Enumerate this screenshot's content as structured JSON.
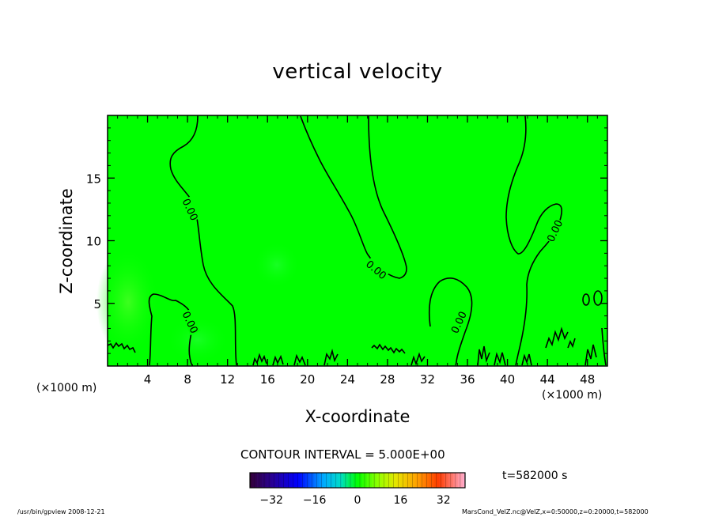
{
  "chart_data": {
    "type": "heatmap",
    "title": "vertical velocity",
    "xlabel": "X-coordinate",
    "ylabel": "Z-coordinate",
    "x_unit_label": "(×1000 m)",
    "xlim": [
      0,
      50
    ],
    "ylim": [
      0,
      20
    ],
    "x_ticks": [
      4,
      8,
      12,
      16,
      20,
      24,
      28,
      32,
      36,
      40,
      44,
      48
    ],
    "y_ticks": [
      5,
      10,
      15
    ],
    "contour_levels": [
      0.0
    ],
    "contour_labels": [
      {
        "x": 8.3,
        "y": 12.5,
        "text": "0.00",
        "angle": 65
      },
      {
        "x": 8.3,
        "y": 3.5,
        "text": "0.00",
        "angle": 65
      },
      {
        "x": 26.9,
        "y": 7.7,
        "text": "0.00",
        "angle": 40
      },
      {
        "x": 35.1,
        "y": 3.5,
        "text": "0.00",
        "angle": -65
      },
      {
        "x": 44.7,
        "y": 10.8,
        "text": "0.00",
        "angle": -65
      }
    ],
    "contour_interval_text": "CONTOUR INTERVAL = 5.000E+00",
    "colorbar": {
      "min": -40,
      "max": 40,
      "ticks": [
        -32,
        -16,
        0,
        16,
        32
      ]
    },
    "field_color": "#00ff00",
    "time_label": "t=582000 s",
    "grid": false
  },
  "footer": {
    "left": "/usr/bin/gpview   2008-12-21",
    "right": "MarsCond_VelZ.nc@VelZ,x=0:50000,z=0:20000,t=582000"
  }
}
